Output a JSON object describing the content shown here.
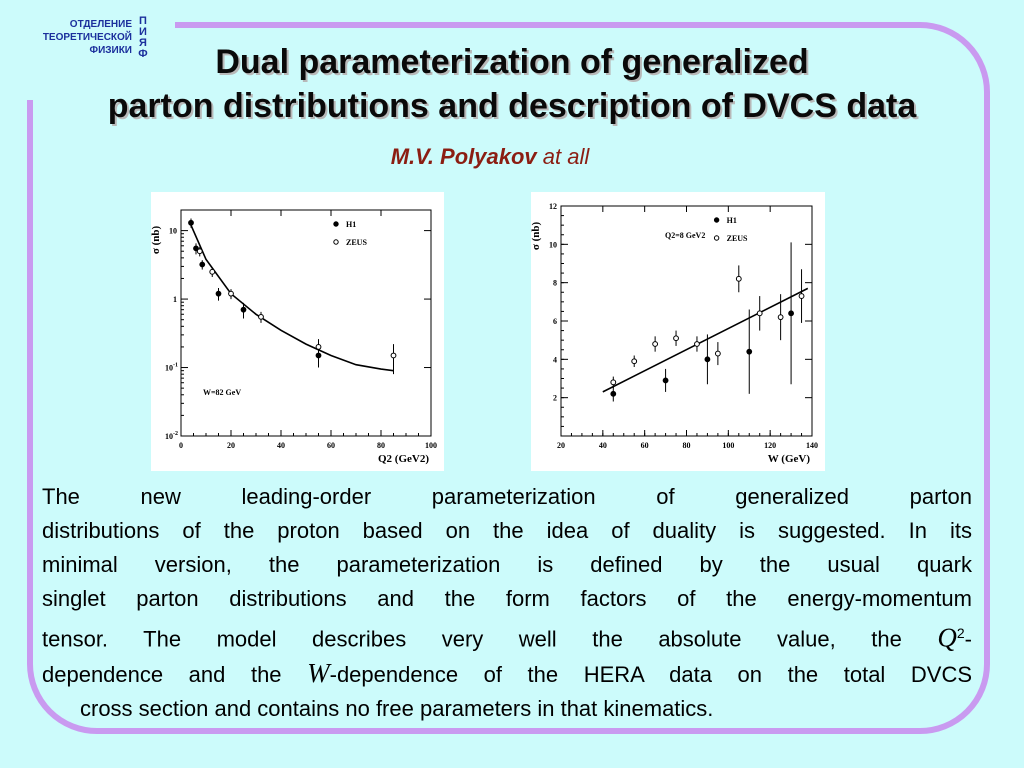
{
  "header": {
    "dept_lines": [
      "ОТДЕЛЕНИЕ",
      "ТЕОРЕТИЧЕСКОЙ",
      "ФИЗИКИ"
    ],
    "logo_letters": [
      "П",
      "И",
      "Я",
      "Ф"
    ]
  },
  "title": {
    "line1": "Dual parameterization of generalized",
    "line2": "parton distributions and description of DVCS data"
  },
  "author": {
    "name": "M.V. Polyakov",
    "suffix": "at all"
  },
  "body": {
    "line1": "The new leading-order parameterization of generalized parton",
    "line2": "distributions of the proton based on the idea of duality is suggested. In its",
    "line3": "minimal version, the parameterization is defined by the usual quark",
    "line4": "singlet parton distributions and the form factors of the energy-momentum",
    "line5_pre": "tensor. The model describes very well the absolute value,  the",
    "line5_sym": "Q",
    "line5_sup": "2",
    "line5_post": "-",
    "line6_pre": "dependence and the",
    "line6_sym": "W",
    "line6_post": "-dependence of the HERA data on the total DVCS",
    "line7": "cross section and contains no free parameters in that kinematics."
  },
  "colors": {
    "background": "#ccfbfb",
    "frame": "#c99af0",
    "author": "#8b1d12",
    "dept": "#1b2f9c"
  },
  "chart_data": [
    {
      "type": "scatter",
      "yscale": "log",
      "xlabel": "Q2 (GeV2)",
      "ylabel": "σ (nb)",
      "xlim": [
        0,
        100
      ],
      "ylim": [
        0.01,
        20
      ],
      "x_ticks": [
        0,
        20,
        40,
        60,
        80,
        100
      ],
      "x_tick_labels": [
        "0",
        "20",
        "40",
        "60",
        "80",
        "100"
      ],
      "y_tick_labels": [
        "10",
        "1",
        "10-1",
        "10-2"
      ],
      "annotation": "W=82 GeV",
      "legend": [
        "H1",
        "ZEUS"
      ],
      "series": [
        {
          "name": "H1",
          "marker": "filled",
          "points": [
            [
              4,
              13
            ],
            [
              6,
              5.5
            ],
            [
              8.5,
              3.2
            ],
            [
              15,
              1.2
            ],
            [
              25,
              0.7
            ],
            [
              55,
              0.15
            ]
          ],
          "err": [
            2,
            1.0,
            0.5,
            0.25,
            0.18,
            0.05
          ]
        },
        {
          "name": "ZEUS",
          "marker": "open",
          "points": [
            [
              7.5,
              5.0
            ],
            [
              12.5,
              2.5
            ],
            [
              20,
              1.2
            ],
            [
              32,
              0.55
            ],
            [
              55,
              0.2
            ],
            [
              85,
              0.15
            ]
          ],
          "err": [
            0.8,
            0.4,
            0.2,
            0.1,
            0.06,
            0.07
          ]
        }
      ],
      "curve": {
        "x": [
          4,
          10,
          20,
          30,
          40,
          50,
          60,
          70,
          80,
          85
        ],
        "y": [
          12,
          3.8,
          1.2,
          0.6,
          0.35,
          0.22,
          0.15,
          0.11,
          0.095,
          0.09
        ]
      }
    },
    {
      "type": "scatter",
      "xlabel": "W (GeV)",
      "ylabel": "σ (nb)",
      "xlim": [
        20,
        140
      ],
      "ylim": [
        0,
        12
      ],
      "x_ticks": [
        20,
        40,
        60,
        80,
        100,
        120,
        140
      ],
      "x_tick_labels": [
        "20",
        "40",
        "60",
        "80",
        "100",
        "120",
        "140"
      ],
      "y_ticks": [
        2,
        4,
        6,
        8,
        10,
        12
      ],
      "y_tick_labels": [
        "2",
        "4",
        "6",
        "8",
        "10",
        "12"
      ],
      "annotation": "Q2=8 GeV2",
      "legend": [
        "H1",
        "ZEUS"
      ],
      "series": [
        {
          "name": "H1",
          "marker": "filled",
          "points": [
            [
              45,
              2.2
            ],
            [
              70,
              2.9
            ],
            [
              90,
              4.0
            ],
            [
              110,
              4.4
            ],
            [
              130,
              6.4
            ]
          ],
          "err": [
            0.4,
            0.6,
            1.3,
            2.2,
            3.7
          ]
        },
        {
          "name": "ZEUS",
          "marker": "open",
          "points": [
            [
              45,
              2.8
            ],
            [
              55,
              3.9
            ],
            [
              65,
              4.8
            ],
            [
              75,
              5.1
            ],
            [
              85,
              4.8
            ],
            [
              95,
              4.3
            ],
            [
              105,
              8.2
            ],
            [
              115,
              6.4
            ],
            [
              125,
              6.2
            ],
            [
              135,
              7.3
            ]
          ],
          "err": [
            0.3,
            0.3,
            0.4,
            0.4,
            0.4,
            0.6,
            0.7,
            0.9,
            1.2,
            1.4
          ]
        }
      ],
      "curve": {
        "x": [
          40,
          138
        ],
        "y": [
          2.3,
          7.7
        ]
      }
    }
  ]
}
